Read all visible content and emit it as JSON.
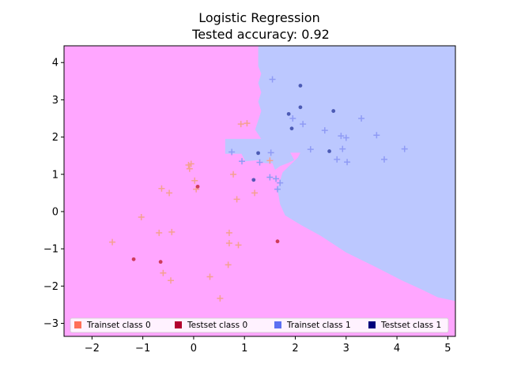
{
  "chart_data": {
    "type": "scatter",
    "title": "Logistic  Regression",
    "subtitle": "Tested accuracy: 0.92",
    "xlabel": "",
    "ylabel": "",
    "xlim": [
      -2.55,
      5.15
    ],
    "ylim": [
      -3.35,
      4.45
    ],
    "xticks": [
      "−2",
      "−1",
      "0",
      "1",
      "2",
      "3",
      "4",
      "5"
    ],
    "xtick_values": [
      -2,
      -1,
      0,
      1,
      2,
      3,
      4,
      5
    ],
    "yticks": [
      "−3",
      "−2",
      "−1",
      "0",
      "1",
      "2",
      "3",
      "4"
    ],
    "ytick_values": [
      -3,
      -2,
      -1,
      0,
      1,
      2,
      3,
      4
    ],
    "grid": false,
    "legend_position": "bottom",
    "decision_region": {
      "class0_color": "#ffa6ff",
      "class1_color": "#bcc8ff",
      "class1_boundary": [
        [
          1.27,
          4.45
        ],
        [
          1.27,
          3.9
        ],
        [
          1.33,
          3.7
        ],
        [
          1.27,
          3.45
        ],
        [
          1.33,
          3.2
        ],
        [
          1.27,
          2.95
        ],
        [
          1.33,
          2.7
        ],
        [
          1.27,
          2.45
        ],
        [
          1.21,
          2.2
        ],
        [
          1.33,
          1.95
        ],
        [
          0.62,
          1.95
        ],
        [
          0.62,
          1.55
        ],
        [
          0.94,
          1.55
        ],
        [
          1.02,
          1.35
        ],
        [
          1.27,
          1.38
        ],
        [
          1.4,
          1.3
        ],
        [
          1.55,
          1.3
        ],
        [
          1.6,
          1.12
        ],
        [
          1.7,
          1.22
        ],
        [
          1.85,
          1.3
        ],
        [
          1.98,
          1.38
        ],
        [
          1.9,
          1.58
        ],
        [
          2.1,
          1.58
        ],
        [
          2.05,
          1.45
        ],
        [
          1.75,
          1.05
        ],
        [
          1.65,
          0.6
        ],
        [
          1.7,
          0.2
        ],
        [
          1.8,
          -0.1
        ],
        [
          2.1,
          -0.35
        ],
        [
          2.5,
          -0.65
        ],
        [
          3.0,
          -1.1
        ],
        [
          3.6,
          -1.5
        ],
        [
          4.1,
          -1.85
        ],
        [
          4.5,
          -2.1
        ],
        [
          4.8,
          -2.3
        ],
        [
          5.15,
          -2.4
        ],
        [
          5.15,
          4.45
        ]
      ]
    },
    "series": [
      {
        "name": "Trainset class 0",
        "marker": "plus",
        "color": "#f4a090",
        "x": [
          -1.6,
          -1.03,
          -0.68,
          -0.63,
          -0.6,
          -0.48,
          -0.43,
          -0.45,
          -0.1,
          -0.05,
          -0.08,
          0.02,
          0.05,
          0.32,
          0.52,
          0.68,
          0.7,
          0.7,
          0.78,
          0.85,
          0.88,
          0.93,
          1.05,
          1.2,
          1.5
        ],
        "y": [
          -0.82,
          -0.15,
          -0.57,
          0.62,
          -1.65,
          0.5,
          -0.55,
          -1.85,
          1.25,
          1.28,
          1.15,
          0.83,
          0.6,
          -1.75,
          -2.33,
          -1.43,
          -0.57,
          -0.85,
          1.0,
          0.33,
          -0.9,
          2.35,
          2.37,
          0.5,
          1.37
        ]
      },
      {
        "name": "Testset class 0",
        "marker": "circle",
        "color": "#c5283d",
        "x": [
          -1.18,
          -0.65,
          0.08,
          1.65
        ],
        "y": [
          -1.28,
          -1.35,
          0.67,
          -0.8
        ]
      },
      {
        "name": "Trainset class 1",
        "marker": "plus",
        "color": "#8f9bf5",
        "x": [
          1.55,
          1.95,
          2.15,
          2.3,
          2.58,
          2.82,
          2.9,
          2.93,
          3.0,
          3.02,
          3.3,
          3.6,
          3.75,
          4.15,
          0.75,
          0.95,
          1.3,
          1.52,
          1.5,
          1.65,
          1.7,
          1.62
        ],
        "y": [
          3.55,
          2.5,
          2.35,
          1.67,
          2.18,
          1.4,
          2.03,
          1.68,
          1.98,
          1.33,
          2.5,
          2.05,
          1.4,
          1.68,
          1.6,
          1.35,
          1.32,
          1.58,
          0.92,
          0.6,
          0.77,
          0.88
        ]
      },
      {
        "name": "Testset class 1",
        "marker": "circle",
        "color": "#3848a8",
        "x": [
          2.1,
          2.1,
          1.87,
          1.93,
          2.75,
          2.67,
          1.27,
          1.18
        ],
        "y": [
          3.38,
          2.8,
          2.62,
          2.23,
          2.7,
          1.62,
          1.57,
          0.85
        ]
      }
    ],
    "legend": [
      {
        "label": "Trainset class 0",
        "color": "#ff6f58"
      },
      {
        "label": "Testset class 0",
        "color": "#b2002f"
      },
      {
        "label": "Trainset class 1",
        "color": "#5c6ff2"
      },
      {
        "label": "Testset class 1",
        "color": "#00007b"
      }
    ]
  }
}
